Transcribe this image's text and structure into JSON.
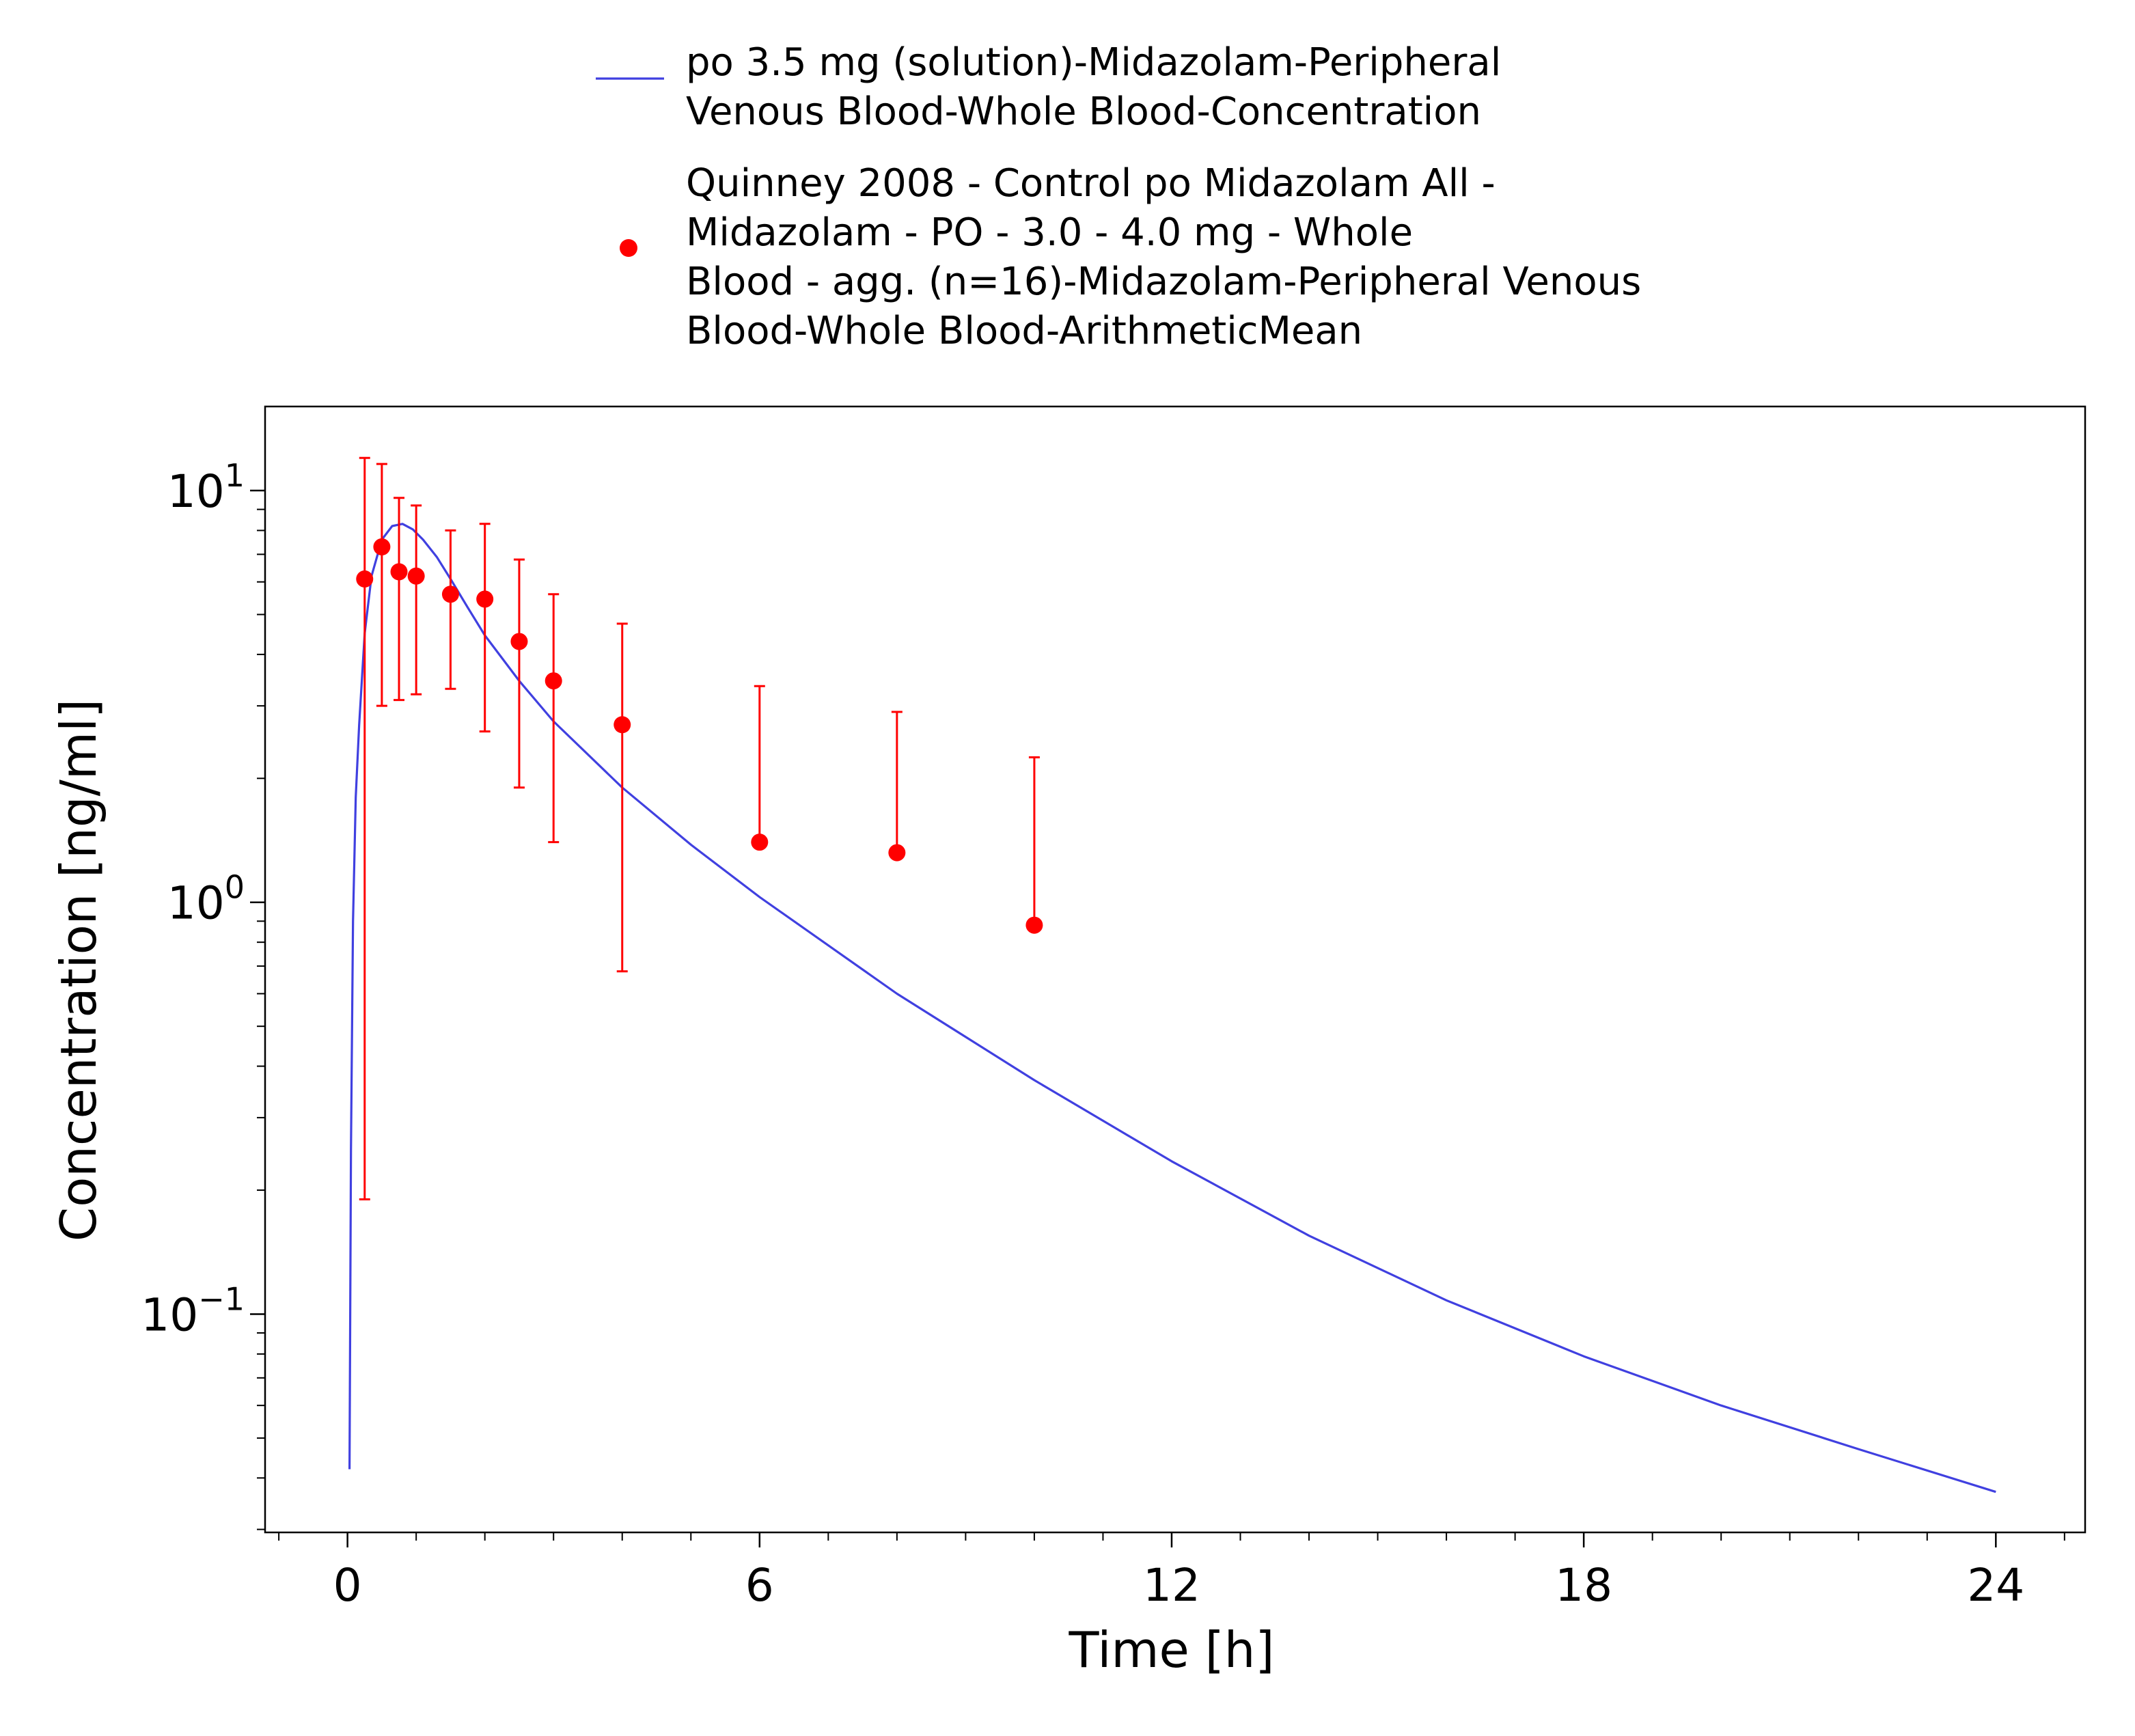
{
  "chart_data": {
    "type": "scatter",
    "title": "",
    "xlabel": "Time [h]",
    "ylabel": "Concentration [ng/ml]",
    "xscale": "linear",
    "yscale": "log",
    "xlim": [
      -1.2,
      25.3
    ],
    "ylim": [
      0.0295,
      16.0
    ],
    "xticks": [
      0,
      6,
      12,
      18,
      24
    ],
    "xtick_labels": [
      "0",
      "6",
      "12",
      "18",
      "24"
    ],
    "yticks": [
      {
        "value": 0.1,
        "base": "10",
        "exp": "−1"
      },
      {
        "value": 1,
        "base": "10",
        "exp": "0"
      },
      {
        "value": 10,
        "base": "10",
        "exp": "1"
      }
    ],
    "grid": false,
    "legend_position": "top-center",
    "series": [
      {
        "name": "po 3.5 mg (solution)-Midazolam-Peripheral Venous Blood-Whole Blood-Concentration",
        "legend_lines": [
          "po 3.5 mg (solution)-Midazolam-Peripheral",
          "Venous Blood-Whole Blood-Concentration"
        ],
        "kind": "line",
        "color": "#4040e0",
        "x": [
          0.03,
          0.05,
          0.08,
          0.12,
          0.17,
          0.25,
          0.35,
          0.5,
          0.65,
          0.8,
          0.95,
          1.1,
          1.3,
          1.5,
          1.75,
          2.0,
          2.5,
          3.0,
          4.0,
          5.0,
          6.0,
          8.0,
          10.0,
          12.0,
          14.0,
          16.0,
          18.0,
          20.0,
          22.0,
          24.0
        ],
        "y": [
          0.042,
          0.25,
          0.9,
          1.8,
          2.7,
          4.5,
          6.2,
          7.6,
          8.2,
          8.3,
          8.05,
          7.6,
          6.9,
          6.1,
          5.2,
          4.45,
          3.45,
          2.75,
          1.9,
          1.38,
          1.03,
          0.6,
          0.37,
          0.235,
          0.155,
          0.108,
          0.079,
          0.06,
          0.047,
          0.037
        ]
      },
      {
        "name": "Quinney 2008 - Control po Midazolam All - Midazolam - PO - 3.0 - 4.0 mg - Whole Blood - agg. (n=16)-Midazolam-Peripheral Venous Blood-Whole Blood-ArithmeticMean",
        "legend_lines": [
          "Quinney 2008 - Control po Midazolam All -",
          "Midazolam - PO - 3.0 - 4.0 mg - Whole",
          "Blood - agg. (n=16)-Midazolam-Peripheral Venous",
          "Blood-Whole Blood-ArithmeticMean"
        ],
        "kind": "scatter",
        "color": "#ff0000",
        "points": [
          {
            "x": 0.25,
            "y": 6.1,
            "low": 0.19,
            "high": 12.0
          },
          {
            "x": 0.5,
            "y": 7.3,
            "low": 3.0,
            "high": 11.6
          },
          {
            "x": 0.75,
            "y": 6.35,
            "low": 3.1,
            "high": 9.6
          },
          {
            "x": 1.0,
            "y": 6.2,
            "low": 3.2,
            "high": 9.2
          },
          {
            "x": 1.5,
            "y": 5.6,
            "low": 3.3,
            "high": 8.0
          },
          {
            "x": 2.0,
            "y": 5.45,
            "low": 2.6,
            "high": 8.3
          },
          {
            "x": 2.5,
            "y": 4.3,
            "low": 1.9,
            "high": 6.8
          },
          {
            "x": 3.0,
            "y": 3.45,
            "low": 1.4,
            "high": 5.6
          },
          {
            "x": 4.0,
            "y": 2.7,
            "low": 0.68,
            "high": 4.75
          },
          {
            "x": 6.0,
            "y": 1.4,
            "low": null,
            "high": 3.35
          },
          {
            "x": 8.0,
            "y": 1.32,
            "low": null,
            "high": 2.9
          },
          {
            "x": 10.0,
            "y": 0.88,
            "low": null,
            "high": 2.25
          }
        ]
      }
    ]
  }
}
